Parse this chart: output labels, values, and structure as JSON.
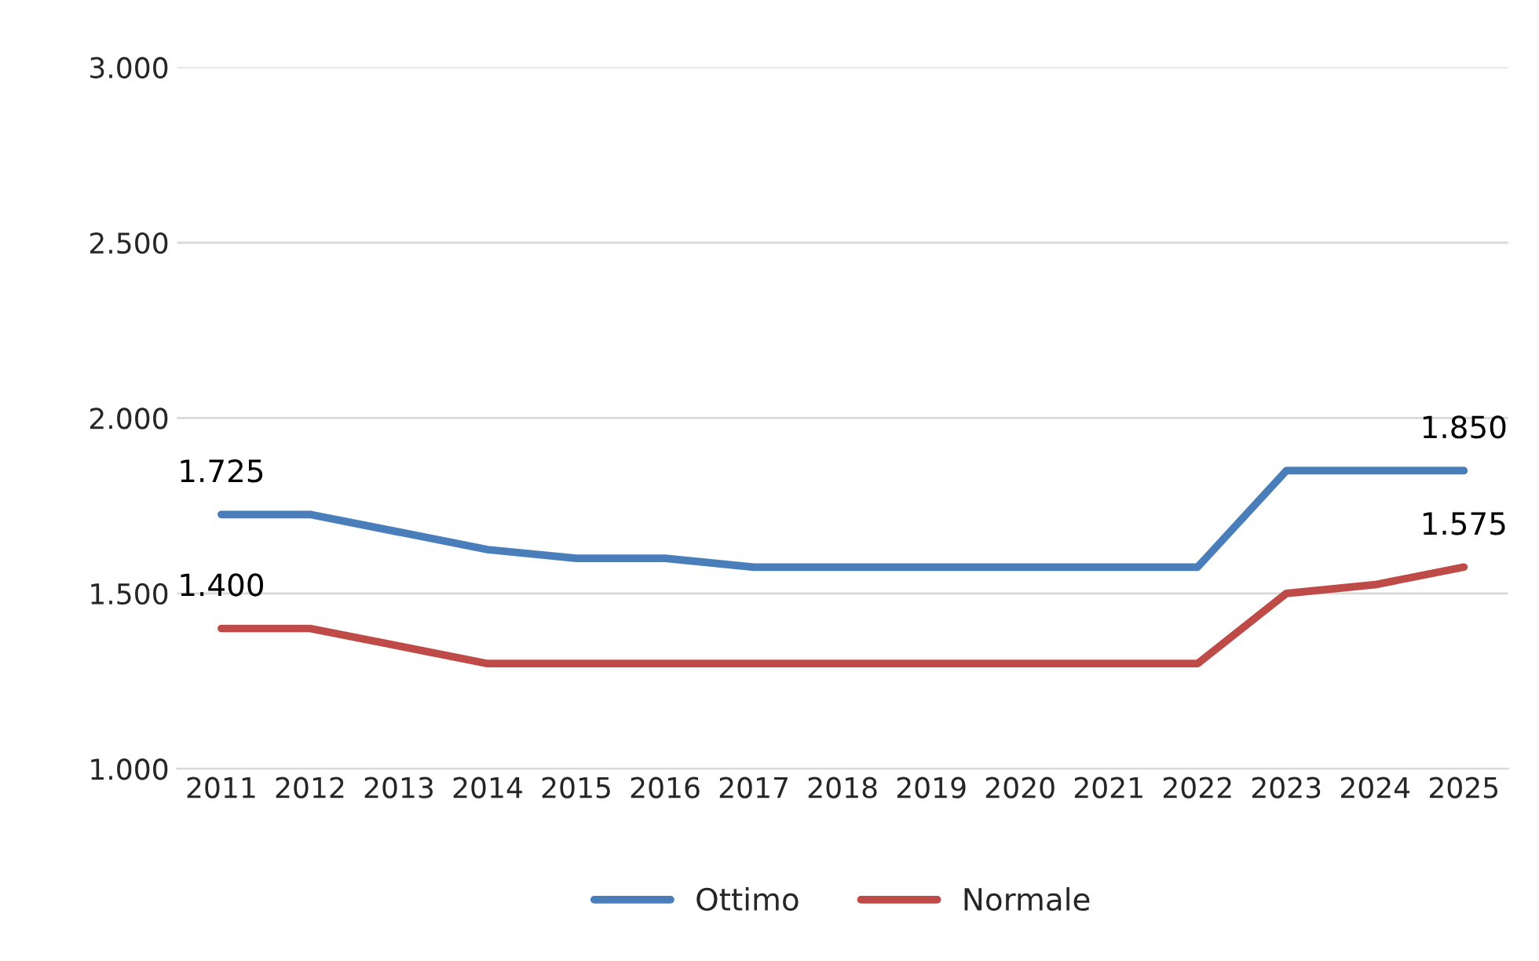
{
  "chart_data": {
    "type": "line",
    "categories": [
      "2011",
      "2012",
      "2013",
      "2014",
      "2015",
      "2016",
      "2017",
      "2018",
      "2019",
      "2020",
      "2021",
      "2022",
      "2023",
      "2024",
      "2025"
    ],
    "series": [
      {
        "name": "Ottimo",
        "color": "#4a7ebb",
        "values": [
          1725,
          1725,
          1675,
          1625,
          1600,
          1600,
          1575,
          1575,
          1575,
          1575,
          1575,
          1575,
          1850,
          1850,
          1850
        ],
        "value_labels": [
          "1.725",
          null,
          null,
          null,
          null,
          null,
          null,
          null,
          null,
          null,
          null,
          null,
          null,
          null,
          "1.850"
        ]
      },
      {
        "name": "Normale",
        "color": "#be4b48",
        "values": [
          1400,
          1400,
          1350,
          1300,
          1300,
          1300,
          1300,
          1300,
          1300,
          1300,
          1300,
          1300,
          1500,
          1525,
          1575
        ],
        "value_labels": [
          "1.400",
          null,
          null,
          null,
          null,
          null,
          null,
          null,
          null,
          null,
          null,
          null,
          null,
          null,
          "1.575"
        ]
      }
    ],
    "ylim": [
      1000,
      3000
    ],
    "yticks": [
      {
        "value": 1000,
        "label": "1.000"
      },
      {
        "value": 1500,
        "label": "1.500"
      },
      {
        "value": 2000,
        "label": "2.000"
      },
      {
        "value": 2500,
        "label": "2.500"
      },
      {
        "value": 3000,
        "label": "3.000"
      }
    ],
    "grid": "y",
    "legend": "bottom",
    "marker": "none",
    "line_style": "solid"
  }
}
